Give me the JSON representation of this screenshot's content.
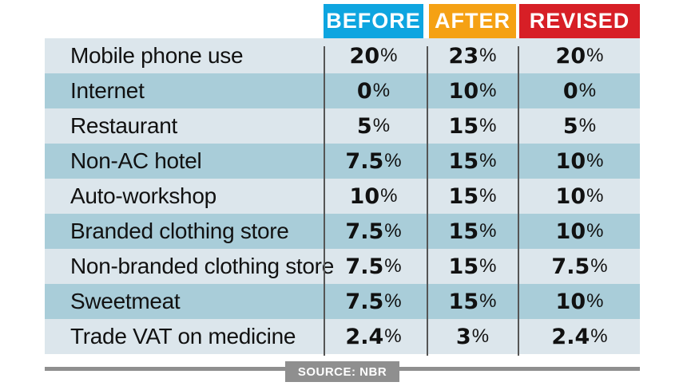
{
  "headers": [
    {
      "label": "BEFORE",
      "color": "#0ea5e0"
    },
    {
      "label": "AFTER",
      "color": "#f5a114"
    },
    {
      "label": "REVISED",
      "color": "#d71f26"
    }
  ],
  "row_colors": [
    "#dce6ec",
    "#a9cdd9"
  ],
  "rows": [
    {
      "label": "Mobile phone use",
      "before": "20",
      "after": "23",
      "revised": "20"
    },
    {
      "label": "Internet",
      "before": "0",
      "after": "10",
      "revised": "0"
    },
    {
      "label": "Restaurant",
      "before": "5",
      "after": "15",
      "revised": "5"
    },
    {
      "label": "Non-AC hotel",
      "before": "7.5",
      "after": "15",
      "revised": "10"
    },
    {
      "label": "Auto-workshop",
      "before": "10",
      "after": "15",
      "revised": "10"
    },
    {
      "label": "Branded clothing store",
      "before": "7.5",
      "after": "15",
      "revised": "10"
    },
    {
      "label": "Non-branded clothing store",
      "before": "7.5",
      "after": "15",
      "revised": "7.5"
    },
    {
      "label": "Sweetmeat",
      "before": "7.5",
      "after": "15",
      "revised": "10"
    },
    {
      "label": "Trade VAT on medicine",
      "before": "2.4",
      "after": "3",
      "revised": "2.4"
    }
  ],
  "percent_sign": "%",
  "source": "SOURCE: NBR"
}
